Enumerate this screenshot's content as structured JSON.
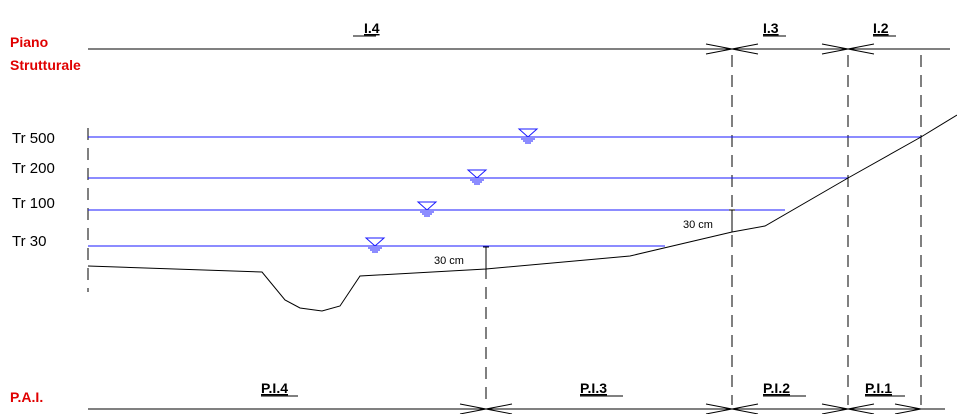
{
  "header": {
    "title_line1": "Piano",
    "title_line2": "Strutturale"
  },
  "footer": {
    "title": "P.A.I."
  },
  "top_zones": [
    {
      "id": "i4",
      "label": "I.4"
    },
    {
      "id": "i3",
      "label": "I.3"
    },
    {
      "id": "i2",
      "label": "I.2"
    }
  ],
  "bottom_zones": [
    {
      "id": "pi4",
      "label": "P.I.4"
    },
    {
      "id": "pi3",
      "label": "P.I.3"
    },
    {
      "id": "pi2",
      "label": "P.I.2"
    },
    {
      "id": "pi1",
      "label": "P.I.1"
    }
  ],
  "return_periods": [
    {
      "id": "tr500",
      "label": "Tr 500"
    },
    {
      "id": "tr200",
      "label": "Tr 200"
    },
    {
      "id": "tr100",
      "label": "Tr 100"
    },
    {
      "id": "tr30",
      "label": "Tr 30"
    }
  ],
  "dimensions": [
    {
      "id": "dim1",
      "label": "30 cm"
    },
    {
      "id": "dim2",
      "label": "30 cm"
    }
  ],
  "colors": {
    "title": "#e00000",
    "water_level": "#1a1aff",
    "line": "#000000"
  }
}
